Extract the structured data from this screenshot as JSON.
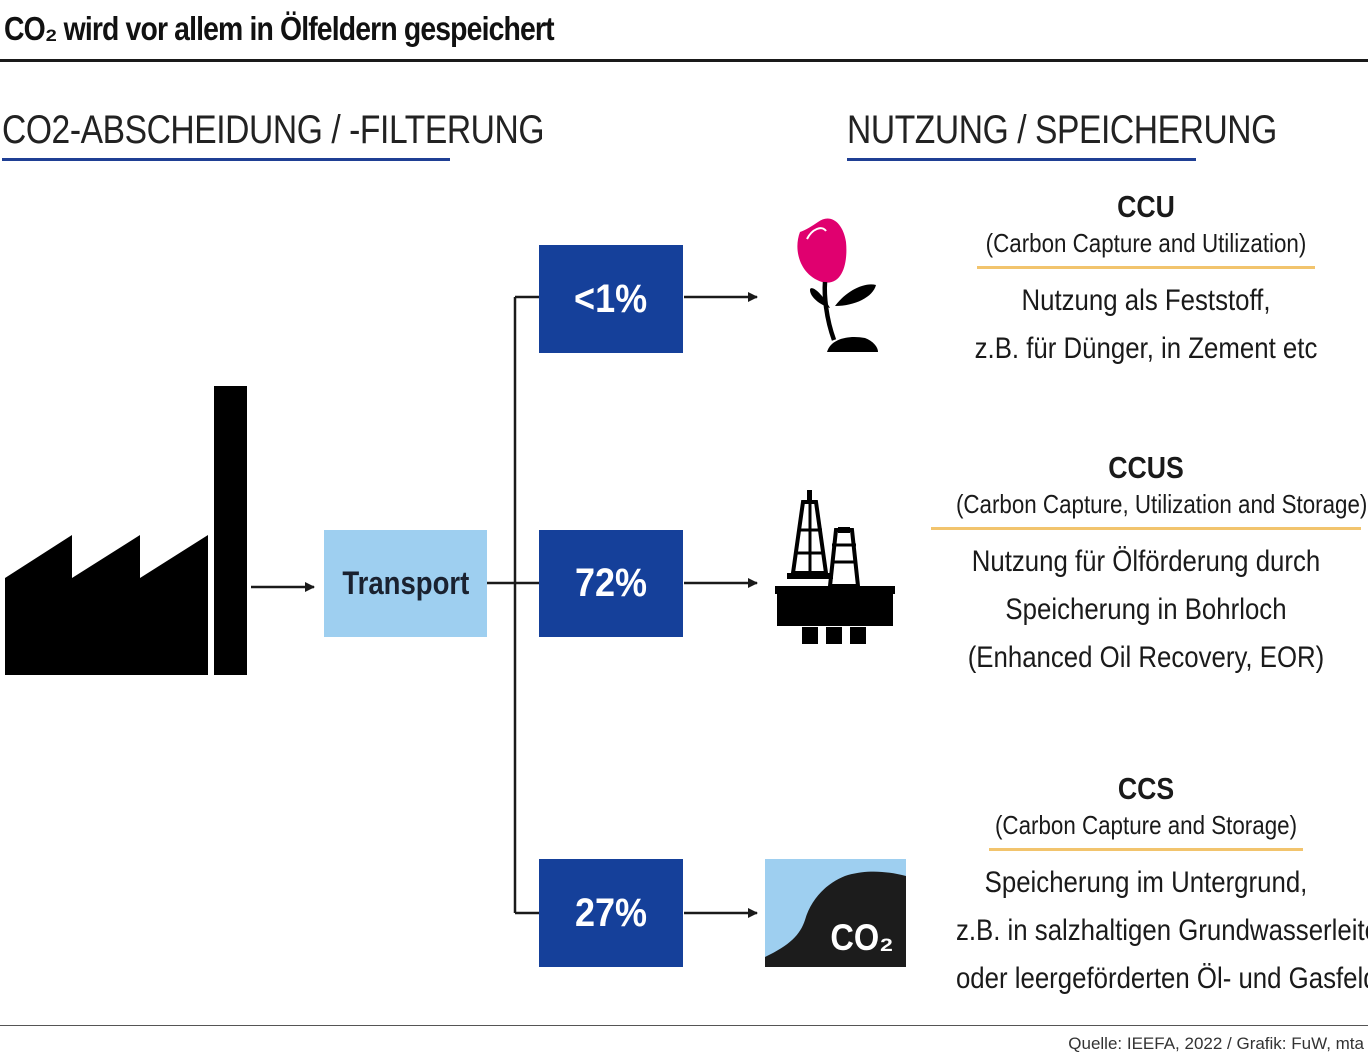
{
  "title": "CO₂  wird vor allem in Ölfeldern gespeichert",
  "sections": {
    "left": "CO2-ABSCHEIDUNG / -FILTERUNG",
    "right": "NUTZUNG / SPEICHERUNG"
  },
  "transport_label": "Transport",
  "branches": [
    {
      "percent": "<1%",
      "abbr": "CCU",
      "full": "(Carbon Capture and Utilization)",
      "desc": [
        "Nutzung als Feststoff,",
        "z.B. für Dünger, in Zement etc"
      ],
      "icon": "flower-icon"
    },
    {
      "percent": "72%",
      "abbr": "CCUS",
      "full": "(Carbon Capture, Utilization and Storage)",
      "desc": [
        "Nutzung für Ölförderung durch",
        "Speicherung in Bohrloch",
        "(Enhanced Oil Recovery, EOR)"
      ],
      "icon": "oil-rig-icon"
    },
    {
      "percent": "27%",
      "abbr": "CCS",
      "full": "(Carbon Capture and Storage)",
      "desc": [
        "Speicherung im Untergrund,",
        "z.B. in salzhaltigen Grundwasserleitern",
        "oder leergeförderten Öl- und Gasfeldern"
      ],
      "icon": "underground-co2-icon"
    }
  ],
  "co2_icon_label": "CO₂",
  "source": "Quelle: IEEFA, 2022 / Grafik: FuW, mta",
  "colors": {
    "box_blue": "#15409a",
    "transport_blue": "#9ecff0",
    "accent_line": "#f2c46d",
    "section_line": "#1f3f94",
    "flower_pink": "#e0006f"
  }
}
